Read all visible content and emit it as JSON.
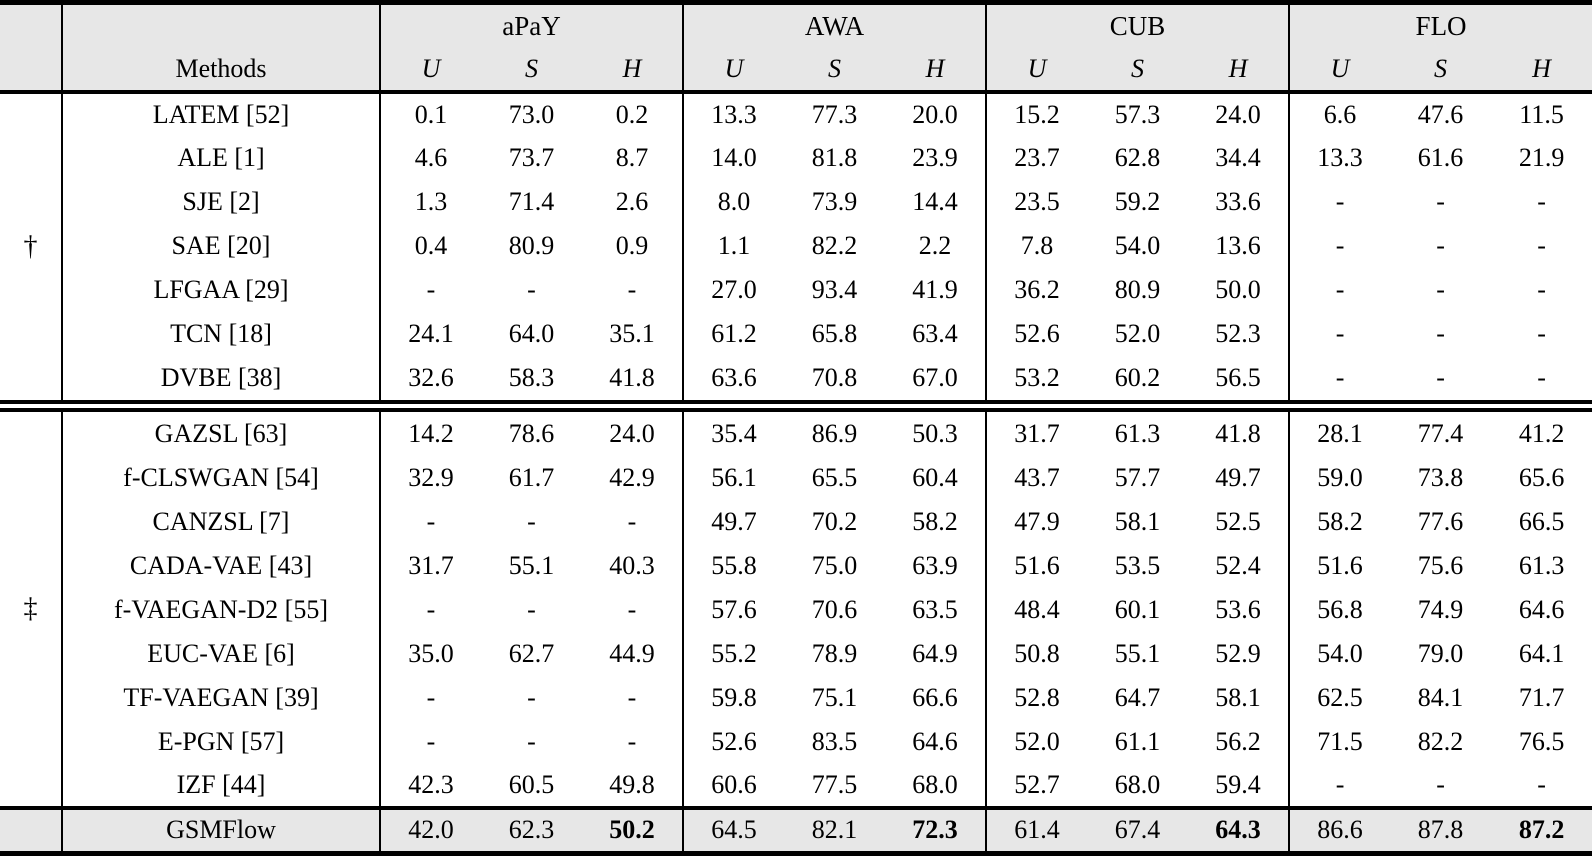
{
  "table": {
    "methods_header": "Methods",
    "datasets": [
      "aPaY",
      "AWA",
      "CUB",
      "FLO"
    ],
    "subcolumns": [
      "U",
      "S",
      "H"
    ],
    "groups": [
      {
        "symbol": "†",
        "rows": [
          {
            "method": "LATEM [52]",
            "values": [
              "0.1",
              "73.0",
              "0.2",
              "13.3",
              "77.3",
              "20.0",
              "15.2",
              "57.3",
              "24.0",
              "6.6",
              "47.6",
              "11.5"
            ]
          },
          {
            "method": "ALE [1]",
            "values": [
              "4.6",
              "73.7",
              "8.7",
              "14.0",
              "81.8",
              "23.9",
              "23.7",
              "62.8",
              "34.4",
              "13.3",
              "61.6",
              "21.9"
            ]
          },
          {
            "method": "SJE [2]",
            "values": [
              "1.3",
              "71.4",
              "2.6",
              "8.0",
              "73.9",
              "14.4",
              "23.5",
              "59.2",
              "33.6",
              "-",
              "-",
              "-"
            ]
          },
          {
            "method": "SAE [20]",
            "values": [
              "0.4",
              "80.9",
              "0.9",
              "1.1",
              "82.2",
              "2.2",
              "7.8",
              "54.0",
              "13.6",
              "-",
              "-",
              "-"
            ]
          },
          {
            "method": "LFGAA [29]",
            "values": [
              "-",
              "-",
              "-",
              "27.0",
              "93.4",
              "41.9",
              "36.2",
              "80.9",
              "50.0",
              "-",
              "-",
              "-"
            ]
          },
          {
            "method": "TCN [18]",
            "values": [
              "24.1",
              "64.0",
              "35.1",
              "61.2",
              "65.8",
              "63.4",
              "52.6",
              "52.0",
              "52.3",
              "-",
              "-",
              "-"
            ]
          },
          {
            "method": "DVBE [38]",
            "values": [
              "32.6",
              "58.3",
              "41.8",
              "63.6",
              "70.8",
              "67.0",
              "53.2",
              "60.2",
              "56.5",
              "-",
              "-",
              "-"
            ]
          }
        ]
      },
      {
        "symbol": "‡",
        "rows": [
          {
            "method": "GAZSL [63]",
            "values": [
              "14.2",
              "78.6",
              "24.0",
              "35.4",
              "86.9",
              "50.3",
              "31.7",
              "61.3",
              "41.8",
              "28.1",
              "77.4",
              "41.2"
            ]
          },
          {
            "method": "f-CLSWGAN [54]",
            "values": [
              "32.9",
              "61.7",
              "42.9",
              "56.1",
              "65.5",
              "60.4",
              "43.7",
              "57.7",
              "49.7",
              "59.0",
              "73.8",
              "65.6"
            ]
          },
          {
            "method": "CANZSL [7]",
            "values": [
              "-",
              "-",
              "-",
              "49.7",
              "70.2",
              "58.2",
              "47.9",
              "58.1",
              "52.5",
              "58.2",
              "77.6",
              "66.5"
            ]
          },
          {
            "method": "CADA-VAE [43]",
            "values": [
              "31.7",
              "55.1",
              "40.3",
              "55.8",
              "75.0",
              "63.9",
              "51.6",
              "53.5",
              "52.4",
              "51.6",
              "75.6",
              "61.3"
            ]
          },
          {
            "method": "f-VAEGAN-D2 [55]",
            "values": [
              "-",
              "-",
              "-",
              "57.6",
              "70.6",
              "63.5",
              "48.4",
              "60.1",
              "53.6",
              "56.8",
              "74.9",
              "64.6"
            ]
          },
          {
            "method": "EUC-VAE [6]",
            "values": [
              "35.0",
              "62.7",
              "44.9",
              "55.2",
              "78.9",
              "64.9",
              "50.8",
              "55.1",
              "52.9",
              "54.0",
              "79.0",
              "64.1"
            ]
          },
          {
            "method": "TF-VAEGAN [39]",
            "values": [
              "-",
              "-",
              "-",
              "59.8",
              "75.1",
              "66.6",
              "52.8",
              "64.7",
              "58.1",
              "62.5",
              "84.1",
              "71.7"
            ]
          },
          {
            "method": "E-PGN [57]",
            "values": [
              "-",
              "-",
              "-",
              "52.6",
              "83.5",
              "64.6",
              "52.0",
              "61.1",
              "56.2",
              "71.5",
              "82.2",
              "76.5"
            ]
          },
          {
            "method": "IZF [44]",
            "values": [
              "42.3",
              "60.5",
              "49.8",
              "60.6",
              "77.5",
              "68.0",
              "52.7",
              "68.0",
              "59.4",
              "-",
              "-",
              "-"
            ]
          }
        ]
      }
    ],
    "footer": {
      "method": "GSMFlow",
      "values": [
        "42.0",
        "62.3",
        "50.2",
        "64.5",
        "82.1",
        "72.3",
        "61.4",
        "67.4",
        "64.3",
        "86.6",
        "87.8",
        "87.2"
      ],
      "bold": [
        2,
        5,
        8,
        11
      ]
    },
    "colors": {
      "header_bg": "#e7e7e7",
      "highlight_bg": "#e7e7e7",
      "rule": "#000000"
    }
  }
}
